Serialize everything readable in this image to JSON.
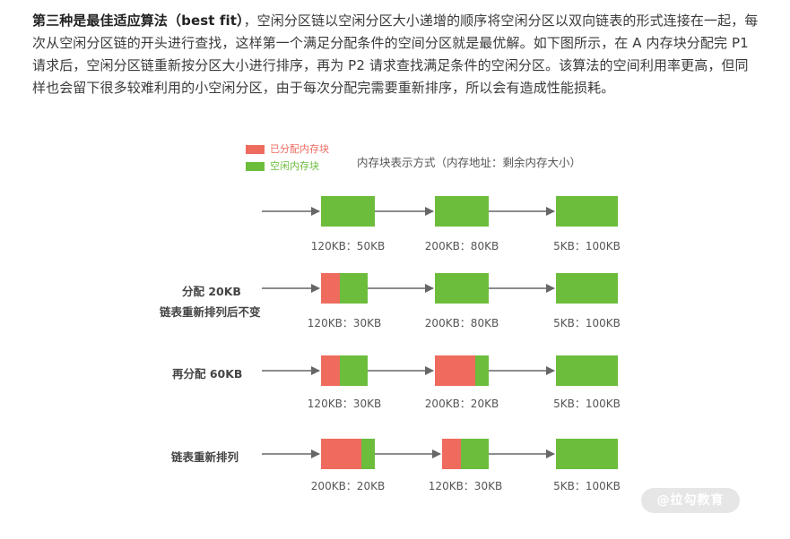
{
  "article": {
    "bold_lead": "第三种是最佳适应算法（best fit）",
    "body": "，空闲分区链以空闲分区大小递增的顺序将空闲分区以双向链表的形式连接在一起，每次从空闲分区链的开头进行查找，这样第一个满足分配条件的空间分区就是最优解。如下图所示，在 A 内存块分配完 P1 请求后，空闲分区链重新按分区大小进行排序，再为 P2 请求查找满足条件的空闲分区。该算法的空间利用率更高，但同样也会留下很多较难利用的小空闲分区，由于每次分配完需要重新排序，所以会有造成性能损耗。"
  },
  "figure": {
    "legend": [
      {
        "label": "已分配内存块",
        "color": "#ee6b5e"
      },
      {
        "label": "空闲内存块",
        "color": "#6cbd3c"
      }
    ],
    "title": "内存块表示方式（内存地址：剩余内存大小）",
    "colors": {
      "allocated": "#ee6b5e",
      "free": "#6cbd3c",
      "arrow": "#666666"
    },
    "rows": [
      {
        "label": "",
        "label2": "",
        "blocks": [
          {
            "caption": "120KB：50KB",
            "allocated": 0,
            "free": 50
          },
          {
            "caption": "200KB：80KB",
            "allocated": 0,
            "free": 80
          },
          {
            "caption": "5KB：100KB",
            "allocated": 0,
            "free": 100
          }
        ]
      },
      {
        "label": "分配 20KB",
        "label2": "链表重新排列后不变",
        "blocks": [
          {
            "caption": "120KB：30KB",
            "allocated": 20,
            "free": 30
          },
          {
            "caption": "200KB：80KB",
            "allocated": 0,
            "free": 80
          },
          {
            "caption": "5KB：100KB",
            "allocated": 0,
            "free": 100
          }
        ]
      },
      {
        "label": "再分配 60KB",
        "label2": "",
        "blocks": [
          {
            "caption": "120KB：30KB",
            "allocated": 20,
            "free": 30
          },
          {
            "caption": "200KB：20KB",
            "allocated": 60,
            "free": 20
          },
          {
            "caption": "5KB：100KB",
            "allocated": 0,
            "free": 100
          }
        ]
      },
      {
        "label": "链表重新排列",
        "label2": "",
        "blocks": [
          {
            "caption": "200KB：20KB",
            "allocated": 60,
            "free": 20
          },
          {
            "caption": "120KB：30KB",
            "allocated": 20,
            "free": 30
          },
          {
            "caption": "5KB：100KB",
            "allocated": 0,
            "free": 100
          }
        ]
      }
    ]
  },
  "watermark": {
    "text": "@拉勾教育"
  }
}
